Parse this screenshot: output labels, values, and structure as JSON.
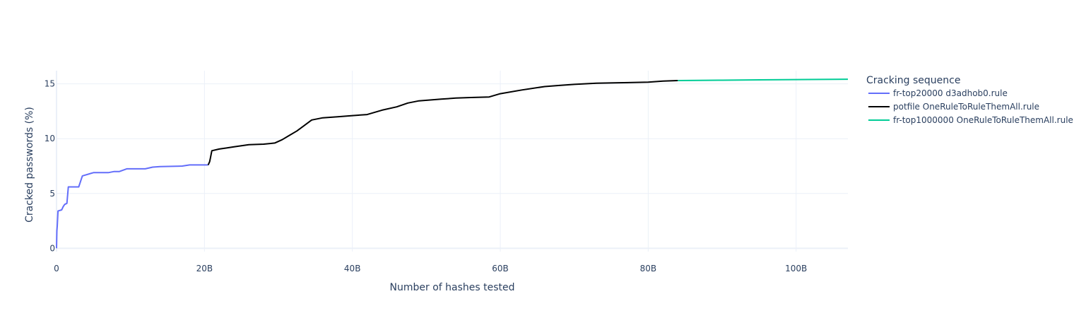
{
  "chart_data": {
    "type": "line",
    "title": "",
    "xlabel": "Number of hashes tested",
    "ylabel": "Cracked passwords (%)",
    "xlim": [
      0,
      107000000000
    ],
    "ylim": [
      -0.3,
      16.2
    ],
    "x_ticks": [
      0,
      20000000000,
      40000000000,
      60000000000,
      80000000000,
      100000000000
    ],
    "x_tick_labels": [
      "0",
      "20B",
      "40B",
      "60B",
      "80B",
      "100B"
    ],
    "y_ticks": [
      0,
      5,
      10,
      15
    ],
    "y_tick_labels": [
      "0",
      "5",
      "10",
      "15"
    ],
    "grid": true,
    "legend": {
      "title": "Cracking sequence",
      "placement": "right"
    },
    "series": [
      {
        "name": "fr-top20000 d3adhob0.rule",
        "color": "#636efa",
        "x": [
          0,
          50000000,
          100000000,
          200000000,
          700000000,
          900000000,
          1100000000,
          1400000000,
          1600000000,
          3000000000,
          3500000000,
          5000000000,
          7000000000,
          7800000000,
          8500000000,
          9500000000,
          12000000000,
          13000000000,
          14000000000,
          17000000000,
          18000000000,
          20500000000
        ],
        "y": [
          0,
          1.6,
          2.0,
          3.4,
          3.5,
          3.8,
          4.0,
          4.1,
          5.6,
          5.6,
          6.6,
          6.9,
          6.9,
          7.0,
          7.0,
          7.25,
          7.25,
          7.4,
          7.45,
          7.5,
          7.6,
          7.6
        ]
      },
      {
        "name": "potfile OneRuleToRuleThemAll.rule",
        "color": "#000000",
        "x": [
          20500000000,
          20700000000,
          20800000000,
          21000000000,
          22000000000,
          23000000000,
          24000000000,
          25000000000,
          26000000000,
          28000000000,
          29500000000,
          30500000000,
          31500000000,
          32500000000,
          33500000000,
          34500000000,
          36000000000,
          38000000000,
          40000000000,
          42000000000,
          44000000000,
          46000000000,
          47500000000,
          49000000000,
          52000000000,
          54000000000,
          56000000000,
          58500000000,
          60000000000,
          63000000000,
          66000000000,
          68000000000,
          70000000000,
          73000000000,
          76000000000,
          80000000000,
          82000000000,
          84000000000
        ],
        "y": [
          7.6,
          7.9,
          8.2,
          8.9,
          9.05,
          9.15,
          9.25,
          9.35,
          9.45,
          9.5,
          9.6,
          9.9,
          10.3,
          10.7,
          11.2,
          11.7,
          11.9,
          12.0,
          12.1,
          12.2,
          12.6,
          12.9,
          13.25,
          13.45,
          13.6,
          13.7,
          13.75,
          13.8,
          14.1,
          14.45,
          14.75,
          14.85,
          14.95,
          15.05,
          15.1,
          15.15,
          15.25,
          15.3
        ]
      },
      {
        "name": "fr-top1000000 OneRuleToRuleThemAll.rule",
        "color": "#00cc96",
        "x": [
          84000000000,
          90000000000,
          95000000000,
          100000000000,
          107000000000
        ],
        "y": [
          15.3,
          15.33,
          15.36,
          15.39,
          15.42
        ]
      }
    ]
  }
}
